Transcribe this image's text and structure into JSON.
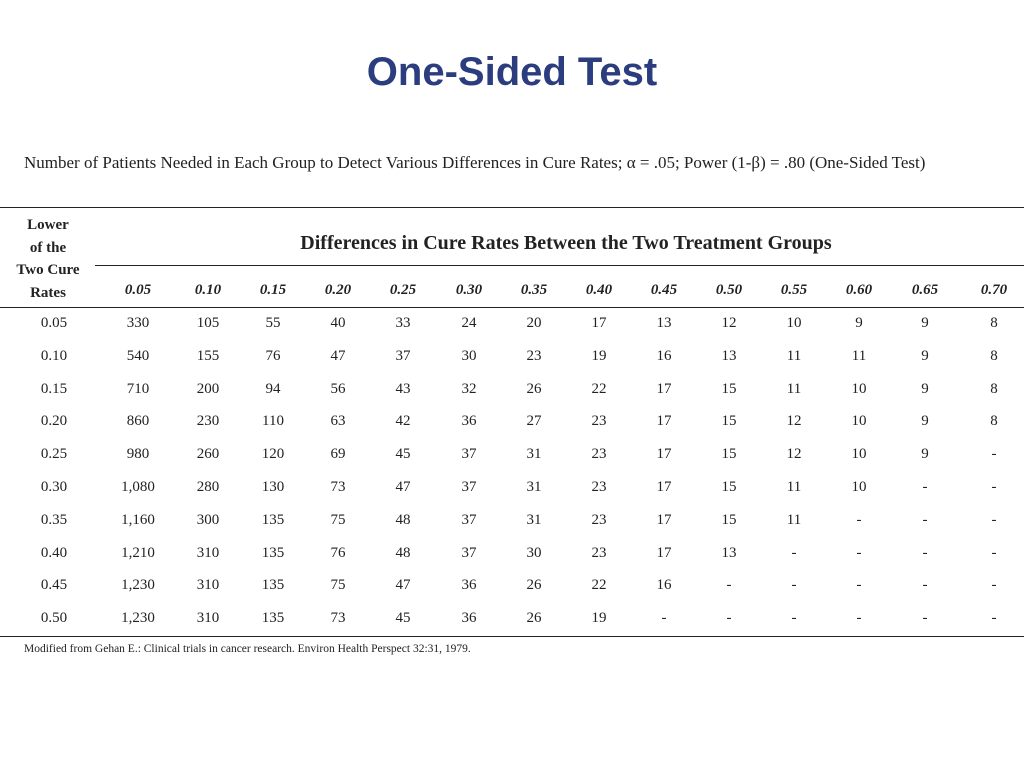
{
  "title": "One-Sided Test",
  "caption": "Number of Patients Needed in Each Group to Detect Various Differences in Cure Rates; α = .05; Power (1-β) = .80 (One-Sided Test)",
  "table": {
    "row_header_lines": [
      "Lower",
      "of the",
      "Two Cure",
      "Rates"
    ],
    "spanning_header": "Differences in Cure Rates Between the Two Treatment Groups",
    "columns": [
      "0.05",
      "0.10",
      "0.15",
      "0.20",
      "0.25",
      "0.30",
      "0.35",
      "0.40",
      "0.45",
      "0.50",
      "0.55",
      "0.60",
      "0.65",
      "0.70"
    ],
    "rows": [
      {
        "label": "0.05",
        "values": [
          "330",
          "105",
          "55",
          "40",
          "33",
          "24",
          "20",
          "17",
          "13",
          "12",
          "10",
          "9",
          "9",
          "8"
        ]
      },
      {
        "label": "0.10",
        "values": [
          "540",
          "155",
          "76",
          "47",
          "37",
          "30",
          "23",
          "19",
          "16",
          "13",
          "11",
          "11",
          "9",
          "8"
        ]
      },
      {
        "label": "0.15",
        "values": [
          "710",
          "200",
          "94",
          "56",
          "43",
          "32",
          "26",
          "22",
          "17",
          "15",
          "11",
          "10",
          "9",
          "8"
        ]
      },
      {
        "label": "0.20",
        "values": [
          "860",
          "230",
          "110",
          "63",
          "42",
          "36",
          "27",
          "23",
          "17",
          "15",
          "12",
          "10",
          "9",
          "8"
        ]
      },
      {
        "label": "0.25",
        "values": [
          "980",
          "260",
          "120",
          "69",
          "45",
          "37",
          "31",
          "23",
          "17",
          "15",
          "12",
          "10",
          "9",
          "-"
        ]
      },
      {
        "label": "0.30",
        "values": [
          "1,080",
          "280",
          "130",
          "73",
          "47",
          "37",
          "31",
          "23",
          "17",
          "15",
          "11",
          "10",
          "-",
          "-"
        ]
      },
      {
        "label": "0.35",
        "values": [
          "1,160",
          "300",
          "135",
          "75",
          "48",
          "37",
          "31",
          "23",
          "17",
          "15",
          "11",
          "-",
          "-",
          "-"
        ]
      },
      {
        "label": "0.40",
        "values": [
          "1,210",
          "310",
          "135",
          "76",
          "48",
          "37",
          "30",
          "23",
          "17",
          "13",
          "-",
          "-",
          "-",
          "-"
        ]
      },
      {
        "label": "0.45",
        "values": [
          "1,230",
          "310",
          "135",
          "75",
          "47",
          "36",
          "26",
          "22",
          "16",
          "-",
          "-",
          "-",
          "-",
          "-"
        ]
      },
      {
        "label": "0.50",
        "values": [
          "1,230",
          "310",
          "135",
          "73",
          "45",
          "36",
          "26",
          "19",
          "-",
          "-",
          "-",
          "-",
          "-",
          "-"
        ]
      }
    ]
  },
  "footnote": "Modified from Gehan E.: Clinical trials in cancer research. Environ Health Perspect 32:31, 1979."
}
